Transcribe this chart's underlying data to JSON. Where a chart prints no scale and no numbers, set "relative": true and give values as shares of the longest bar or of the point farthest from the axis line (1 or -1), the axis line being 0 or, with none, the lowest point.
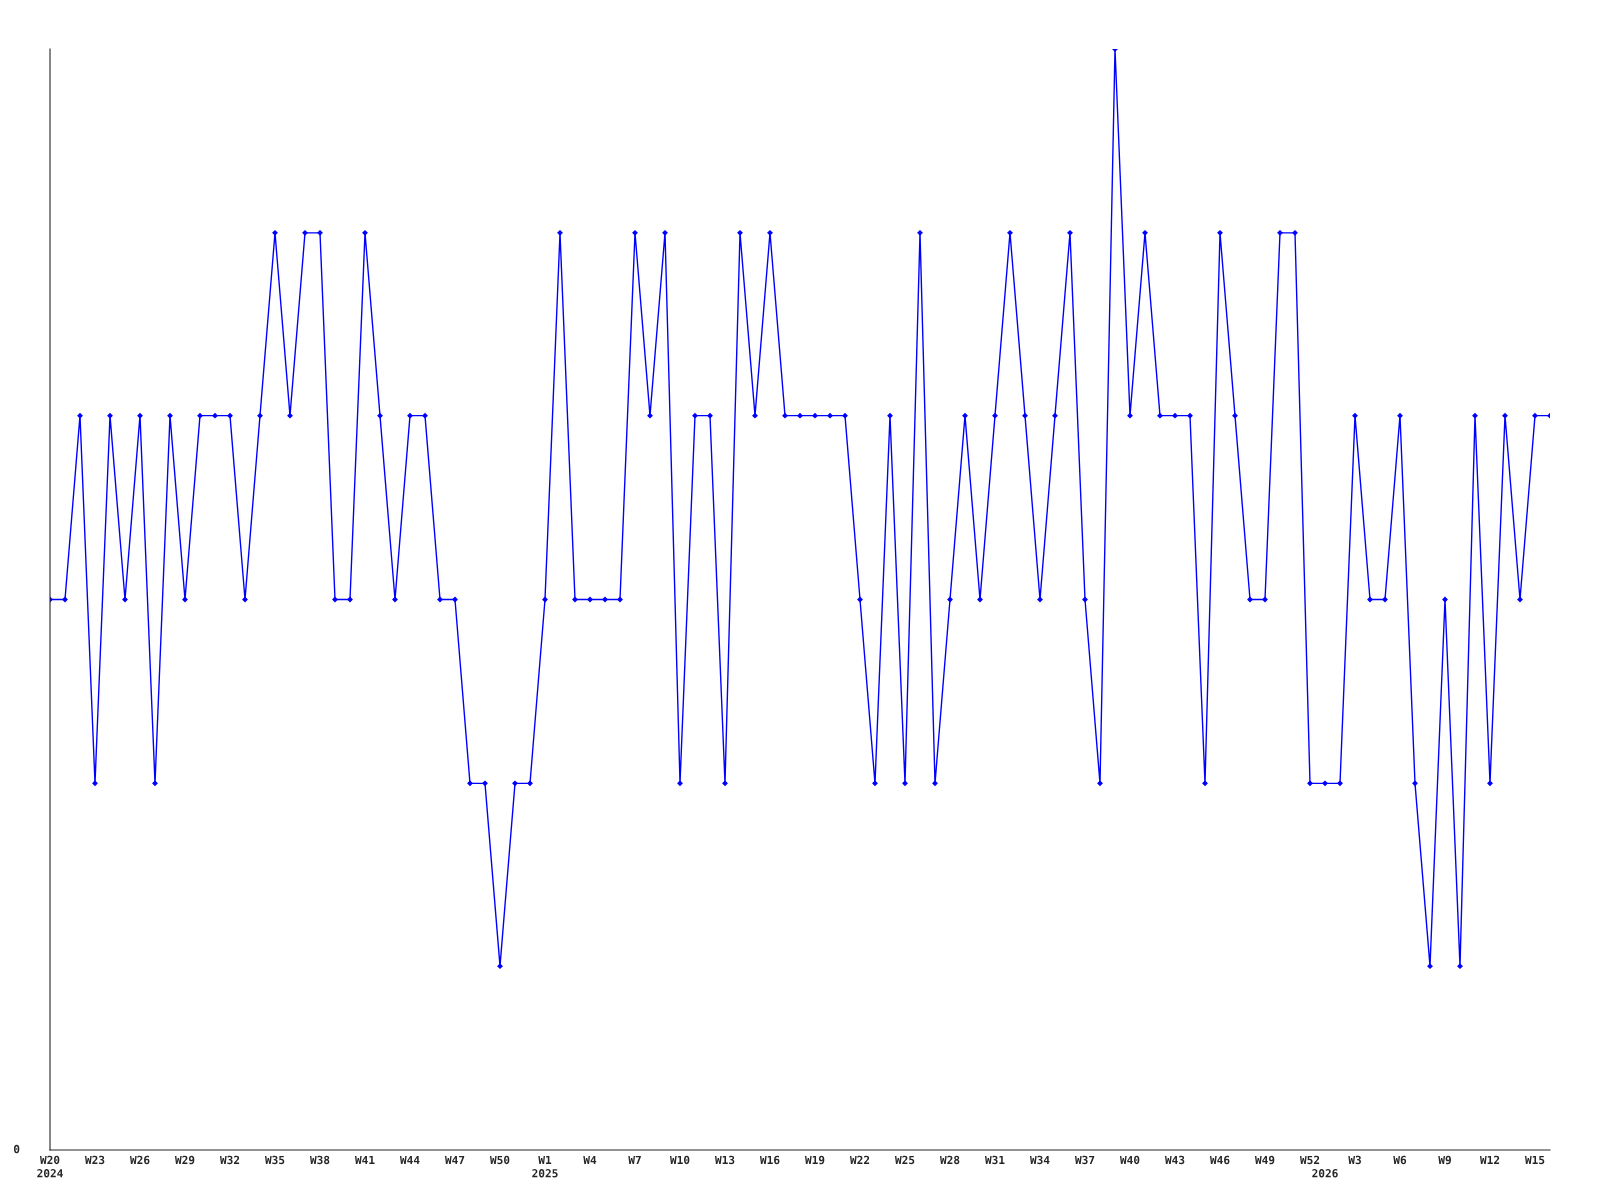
{
  "chart_data": {
    "type": "line",
    "relative": true,
    "color": "#0000ff",
    "marker": "diamond",
    "line_style": "solid",
    "grid": false,
    "legend": false,
    "categories": [
      "W20\n2024",
      null,
      null,
      "W23",
      null,
      null,
      "W26",
      null,
      null,
      "W29",
      null,
      null,
      "W32",
      null,
      null,
      "W35",
      null,
      null,
      "W38",
      null,
      null,
      "W41",
      null,
      null,
      "W44",
      null,
      null,
      "W47",
      null,
      null,
      "W50",
      null,
      null,
      "W1\n2025",
      null,
      null,
      "W4",
      null,
      null,
      "W7",
      null,
      null,
      "W10",
      null,
      null,
      "W13",
      null,
      null,
      "W16",
      null,
      null,
      "W19",
      null,
      null,
      "W22",
      null,
      null,
      "W25",
      null,
      null,
      "W28",
      null,
      null,
      "W31",
      null,
      null,
      "W34",
      null,
      null,
      "W37",
      null,
      null,
      "W40",
      null,
      null,
      "W43",
      null,
      null,
      "W46",
      null,
      null,
      "W49",
      null,
      null,
      "W52",
      "\n2026",
      null,
      "W3",
      null,
      null,
      "W6",
      null,
      null,
      "W9",
      null,
      null,
      "W12",
      null,
      null,
      "W15",
      null
    ],
    "values": [
      0.5,
      0.5,
      0.667,
      0.333,
      0.667,
      0.5,
      0.667,
      0.333,
      0.667,
      0.5,
      0.667,
      0.667,
      0.667,
      0.5,
      0.667,
      0.833,
      0.667,
      0.833,
      0.833,
      0.5,
      0.5,
      0.833,
      0.667,
      0.5,
      0.667,
      0.667,
      0.5,
      0.5,
      0.333,
      0.333,
      0.167,
      0.333,
      0.333,
      0.5,
      0.833,
      0.5,
      0.5,
      0.5,
      0.5,
      0.833,
      0.667,
      0.833,
      0.333,
      0.667,
      0.667,
      0.333,
      0.833,
      0.667,
      0.833,
      0.667,
      0.667,
      0.667,
      0.667,
      0.667,
      0.5,
      0.333,
      0.667,
      0.333,
      0.833,
      0.333,
      0.5,
      0.667,
      0.5,
      0.667,
      0.833,
      0.667,
      0.5,
      0.667,
      0.833,
      0.5,
      0.333,
      1,
      0.667,
      0.833,
      0.667,
      0.667,
      0.667,
      0.333,
      0.833,
      0.667,
      0.5,
      0.5,
      0.833,
      0.833,
      0.333,
      0.333,
      0.333,
      0.667,
      0.5,
      0.5,
      0.667,
      0.333,
      0.167,
      0.5,
      0.167,
      0.667,
      0.333,
      0.667,
      0.5,
      0.667,
      0.667
    ],
    "annotations": [
      "0"
    ]
  }
}
